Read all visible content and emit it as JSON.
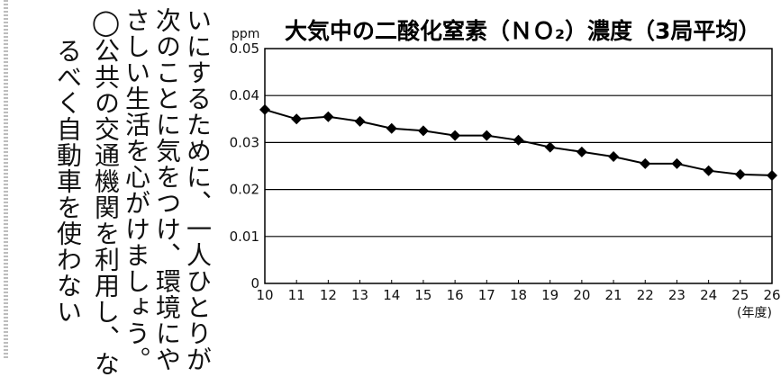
{
  "body_text": {
    "col1": "いにするために、一人ひとりが",
    "col2": "次のことに気をつけ、環境にや",
    "col3": "さしい生活を心がけましょう。",
    "col4": "◯公共の交通機関を利用し、な",
    "col5": "るべく自動車を使わない"
  },
  "chart_data": {
    "type": "line",
    "title": "大気中の二酸化窒素（ＮＯ₂）濃度（3局平均）",
    "ylabel": "ppm",
    "xlabel": "(年度)",
    "x": [
      10,
      11,
      12,
      13,
      14,
      15,
      16,
      17,
      18,
      19,
      20,
      21,
      22,
      23,
      24,
      25,
      26
    ],
    "series": [
      {
        "values": [
          0.037,
          0.035,
          0.0355,
          0.0345,
          0.033,
          0.0325,
          0.0315,
          0.0315,
          0.0305,
          0.029,
          0.028,
          0.027,
          0.0255,
          0.0255,
          0.024,
          0.0232,
          0.023
        ]
      }
    ],
    "ylim": [
      0,
      0.05
    ],
    "yticks": [
      "0.05",
      "0.04",
      "0.03",
      "0.02",
      "0.01",
      "0"
    ],
    "xticks": [
      "10",
      "11",
      "12",
      "13",
      "14",
      "15",
      "16",
      "17",
      "18",
      "19",
      "20",
      "21",
      "22",
      "23",
      "24",
      "25",
      "26"
    ],
    "grid": "horizontal",
    "color": "#000000"
  }
}
